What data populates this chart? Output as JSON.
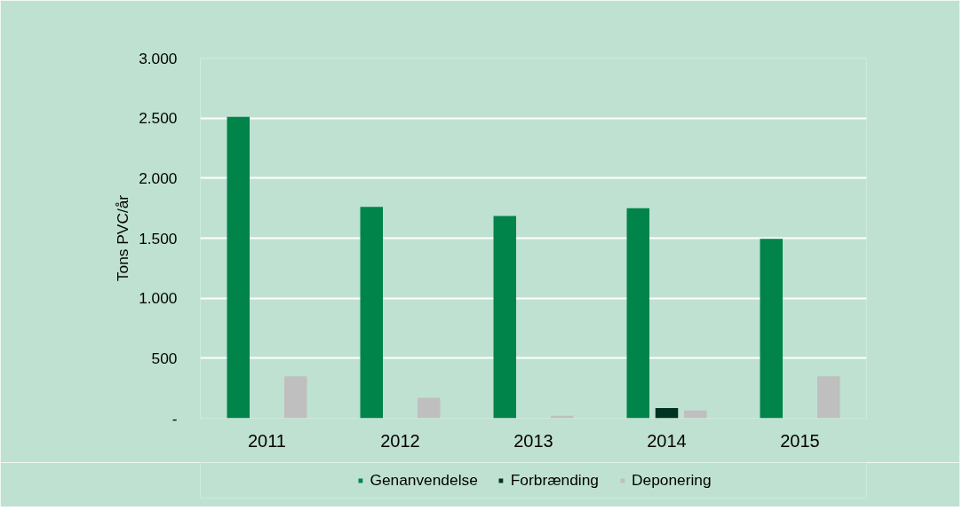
{
  "chart_data": {
    "type": "bar",
    "ylabel": "Tons PVC/år",
    "categories": [
      "2011",
      "2012",
      "2013",
      "2014",
      "2015"
    ],
    "series": [
      {
        "name": "Genanvendelse",
        "color": "#00844a",
        "values": [
          2510,
          1760,
          1685,
          1750,
          1495
        ]
      },
      {
        "name": "Forbrænding",
        "color": "#003321",
        "values": [
          0,
          0,
          0,
          85,
          0
        ]
      },
      {
        "name": "Deponering",
        "color": "#bfbfbf",
        "values": [
          350,
          170,
          20,
          65,
          350
        ]
      }
    ],
    "ylim": [
      0,
      3000
    ],
    "yticks": [
      {
        "value": 0,
        "label": "-"
      },
      {
        "value": 500,
        "label": "500"
      },
      {
        "value": 1000,
        "label": "1.000"
      },
      {
        "value": 1500,
        "label": "1.500"
      },
      {
        "value": 2000,
        "label": "2.000"
      },
      {
        "value": 2500,
        "label": "2.500"
      },
      {
        "value": 3000,
        "label": "3.000"
      }
    ],
    "grid": "y",
    "legend": "bottom"
  }
}
